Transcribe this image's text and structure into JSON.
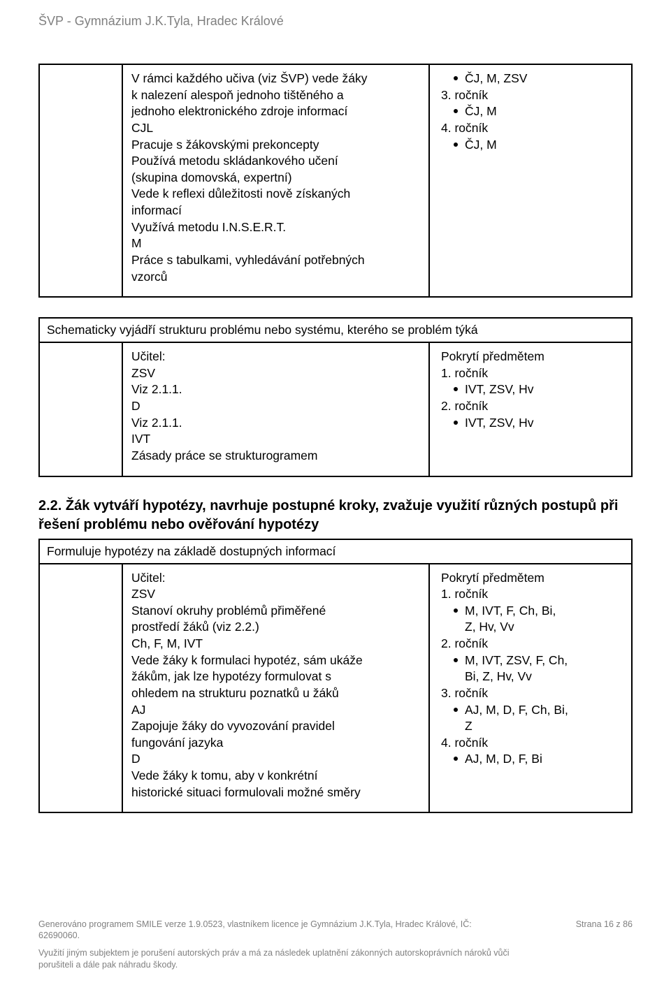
{
  "header": "ŠVP - Gymnázium J.K.Tyla, Hradec Králové",
  "box1": {
    "mid_lines": [
      "V rámci každého učiva (viz ŠVP) vede žáky",
      "k nalezení alespoň jednoho tištěného a",
      "jednoho elektronického zdroje informací",
      "CJL",
      "Pracuje s žákovskými prekoncepty",
      "Používá metodu skládankového učení",
      "(skupina domovská, expertní)",
      "Vede k reflexi důležitosti nově získaných",
      "informací",
      "Využívá metodu I.N.S.E.R.T.",
      "M",
      "Práce s tabulkami, vyhledávání potřebných",
      "vzorců"
    ],
    "right_groups": [
      {
        "bullet": "ČJ,  M,  ZSV"
      },
      {
        "label": "3. ročník",
        "bullet": "ČJ,  M"
      },
      {
        "label": "4. ročník",
        "bullet": "ČJ,  M"
      }
    ]
  },
  "box2": {
    "caption": "Schematicky vyjádří strukturu problému nebo systému, kterého se problém týká",
    "mid_lines": [
      "Učitel:",
      "ZSV",
      "Viz 2.1.1.",
      "D",
      "Viz 2.1.1.",
      "IVT",
      "Zásady práce se strukturogramem"
    ],
    "right_heading": "Pokrytí předmětem",
    "right_groups": [
      {
        "label": "1. ročník",
        "bullet": "IVT,  ZSV,  Hv"
      },
      {
        "label": "2. ročník",
        "bullet": "IVT,  ZSV,  Hv"
      }
    ]
  },
  "section_heading": "2.2. Žák vytváří hypotézy, navrhuje postupné kroky, zvažuje využití různých postupů při řešení problému nebo ověřování hypotézy",
  "box3": {
    "caption": "Formuluje hypotézy na základě dostupných informací",
    "mid_lines": [
      "Učitel:",
      "ZSV",
      "Stanoví okruhy problémů přiměřené",
      "prostředí žáků (viz 2.2.)",
      "Ch, F, M, IVT",
      "Vede žáky k formulaci hypotéz, sám ukáže",
      "žákům, jak lze hypotézy formulovat s",
      "ohledem na strukturu poznatků u  žáků",
      "AJ",
      "Zapojuje žáky do vyvozování pravidel",
      "fungování jazyka",
      "D",
      "Vede žáky k tomu, aby v konkrétní",
      "historické situaci formulovali možné směry"
    ],
    "right_heading": "Pokrytí předmětem",
    "right_groups": [
      {
        "label": "1. ročník",
        "bullet_lines": [
          "M,  IVT,  F,  Ch,  Bi,",
          "Z,  Hv,  Vv"
        ]
      },
      {
        "label": "2. ročník",
        "bullet_lines": [
          "M,  IVT,  ZSV,  F,  Ch,",
          "Bi,  Z,  Hv,  Vv"
        ]
      },
      {
        "label": "3. ročník",
        "bullet_lines": [
          "AJ,  M,  D,  F,  Ch,  Bi,",
          "Z"
        ]
      },
      {
        "label": "4. ročník",
        "bullet_lines": [
          "AJ,  M,  D,  F,  Bi"
        ]
      }
    ]
  },
  "footer": {
    "left1": "Generováno programem SMILE verze 1.9.0523, vlastníkem licence je Gymnázium J.K.Tyla, Hradec Králové, IČ:",
    "left2": "62690060.",
    "right": "Strana 16 z 86",
    "note1": "Využití jiným subjektem je porušení autorských práv a má za následek uplatnění zákonných autorskoprávních nároků vůči",
    "note2": "porušiteli a dále pak náhradu škody."
  }
}
